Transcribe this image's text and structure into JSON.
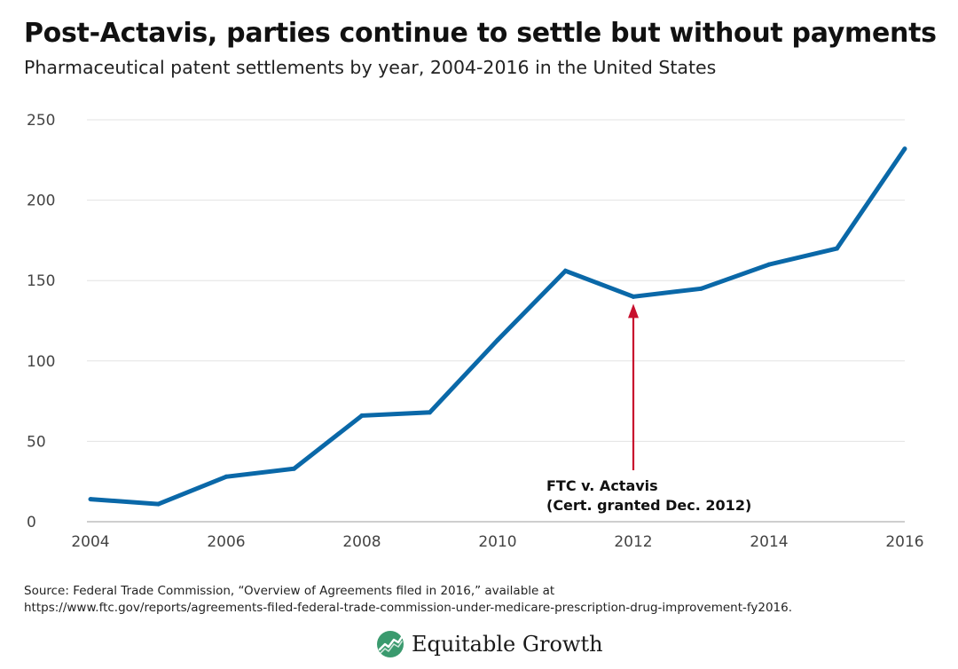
{
  "title": "Post-Actavis, parties continue to settle but without payments",
  "subtitle": "Pharmaceutical patent settlements by year, 2004-2016 in the United States",
  "chart_data": {
    "type": "line",
    "title": "Post-Actavis, parties continue to settle but without payments",
    "subtitle": "Pharmaceutical patent settlements by year, 2004-2016 in the United States",
    "xlabel": "",
    "ylabel": "",
    "x": [
      2004,
      2005,
      2006,
      2007,
      2008,
      2009,
      2010,
      2011,
      2012,
      2013,
      2014,
      2015,
      2016
    ],
    "series": [
      {
        "values": [
          14,
          11,
          28,
          33,
          66,
          68,
          113,
          156,
          140,
          145,
          160,
          170,
          232
        ]
      }
    ],
    "xlim": [
      2004,
      2016
    ],
    "ylim": [
      0,
      250
    ],
    "x_ticks": [
      "2004",
      "2006",
      "2008",
      "2010",
      "2012",
      "2014",
      "2016"
    ],
    "y_ticks": [
      "0",
      "50",
      "100",
      "150",
      "200",
      "250"
    ],
    "grid": "horizontal",
    "line_color": "#0a68a8",
    "annotation": {
      "x": 2012,
      "y": 140,
      "lines": [
        "FTC v. Actavis",
        "(Cert. granted Dec. 2012)"
      ],
      "arrow_color": "#c8102e"
    }
  },
  "source": {
    "line1": "Source: Federal Trade Commission, “Overview of Agreements filed in 2016,” available at",
    "line2": "https://www.ftc.gov/reports/agreements-filed-federal-trade-commission-under-medicare-prescription-drug-improvement-fy2016."
  },
  "logo": {
    "text": "Equitable Growth",
    "icon": "trend-line-leaf-icon",
    "color": "#3a9a6e"
  }
}
